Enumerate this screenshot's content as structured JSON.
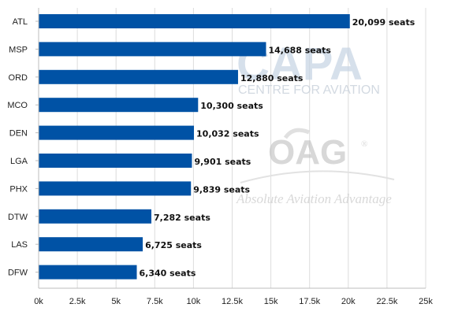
{
  "chart_data": {
    "type": "bar",
    "orientation": "horizontal",
    "categories": [
      "ATL",
      "MSP",
      "ORD",
      "MCO",
      "DEN",
      "LGA",
      "PHX",
      "DTW",
      "LAS",
      "DFW"
    ],
    "values": [
      20099,
      14688,
      12880,
      10300,
      10032,
      9901,
      9839,
      7282,
      6725,
      6340
    ],
    "data_labels": [
      "20,099 seats",
      "14,688 seats",
      "12,880 seats",
      "10,300 seats",
      "10,032 seats",
      "9,901 seats",
      "9,839 seats",
      "7,282 seats",
      "6,725 seats",
      "6,340 seats"
    ],
    "x_ticks": [
      0,
      2500,
      5000,
      7500,
      10000,
      12500,
      15000,
      17500,
      20000,
      22500,
      25000
    ],
    "x_tick_labels": [
      "0k",
      "2.5k",
      "5k",
      "7.5k",
      "10k",
      "12.5k",
      "15k",
      "17.5k",
      "20k",
      "22.5k",
      "25k"
    ],
    "xlim": [
      0,
      25000
    ],
    "title": "",
    "xlabel": "",
    "ylabel": "",
    "grid": "vertical",
    "legend": "none",
    "bar_color": "#0052a5",
    "grid_color": "#dcdcdc"
  },
  "watermarks": {
    "capa": "CAPA",
    "capa_sub": "CENTRE FOR AVIATION",
    "oag": "OAG",
    "oag_registered": "®",
    "oag_sub": "Absolute Aviation Advantage"
  }
}
